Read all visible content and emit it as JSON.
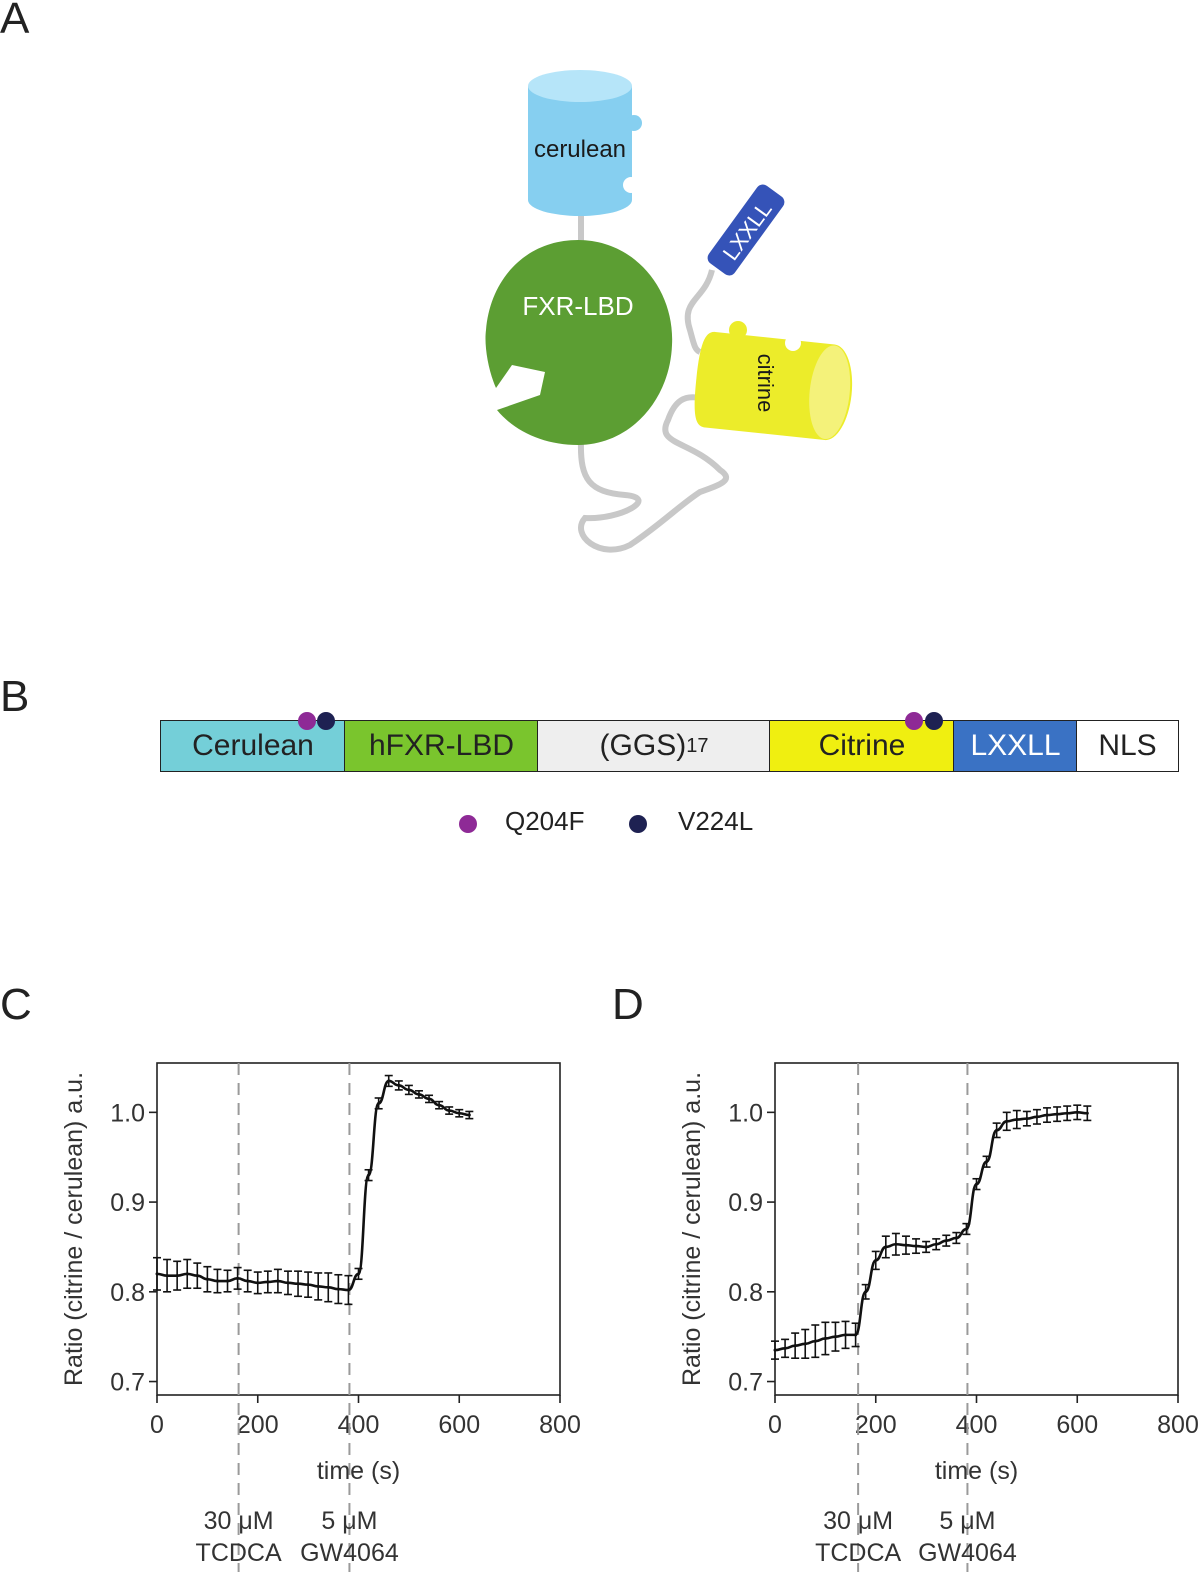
{
  "panels": {
    "a": "A",
    "b": "B",
    "c": "C",
    "d": "D"
  },
  "schematic": {
    "cerulean_label": "cerulean",
    "fxr_label": "FXR-LBD",
    "lxxll_label": "LXXLL",
    "citrine_label": "citrine"
  },
  "construct": {
    "segments": [
      {
        "label": "Cerulean",
        "color": "#74cfd8"
      },
      {
        "label": "hFXR-LBD",
        "color": "#7ac52d"
      },
      {
        "label": "(GGS)",
        "sub": "17",
        "color": "#eeeeee"
      },
      {
        "label": "Citrine",
        "color": "#f0ef10"
      },
      {
        "label": "LXXLL",
        "color": "#3a72c4",
        "text_color": "#ffffff"
      },
      {
        "label": "NLS",
        "color": "#ffffff"
      }
    ],
    "mutation_colors": {
      "q204f": "#8e2a96",
      "v224l": "#1e2152"
    },
    "legend": {
      "q204f": "Q204F",
      "v224l": "V224L"
    }
  },
  "chart_data": [
    {
      "type": "line",
      "panel": "C",
      "xlabel": "time (s)",
      "ylabel": "Ratio (citrine / cerulean) a.u.",
      "xlim": [
        0,
        800
      ],
      "ylim": [
        0.685,
        1.055
      ],
      "xticks": [
        0,
        200,
        400,
        600,
        800
      ],
      "yticks": [
        0.7,
        0.8,
        0.9,
        1.0
      ],
      "ytick_labels": [
        "0.7",
        "0.8",
        "0.9",
        "1.0"
      ],
      "events": [
        {
          "x": 162,
          "line1": "30 μM",
          "line2": "TCDCA"
        },
        {
          "x": 382,
          "line1": "5 μM",
          "line2": "GW4064"
        }
      ],
      "series": [
        {
          "name": "ratio",
          "x": [
            0,
            20,
            40,
            60,
            80,
            100,
            120,
            140,
            160,
            180,
            200,
            220,
            240,
            260,
            280,
            300,
            320,
            340,
            360,
            380,
            400,
            420,
            440,
            460,
            480,
            500,
            520,
            540,
            560,
            580,
            600,
            620
          ],
          "y": [
            0.82,
            0.818,
            0.818,
            0.82,
            0.818,
            0.814,
            0.812,
            0.812,
            0.815,
            0.812,
            0.81,
            0.811,
            0.812,
            0.81,
            0.809,
            0.808,
            0.806,
            0.805,
            0.803,
            0.802,
            0.82,
            0.93,
            1.01,
            1.035,
            1.03,
            1.025,
            1.02,
            1.015,
            1.008,
            1.002,
            0.999,
            0.997
          ],
          "err": [
            0.018,
            0.018,
            0.016,
            0.016,
            0.014,
            0.014,
            0.013,
            0.012,
            0.012,
            0.012,
            0.012,
            0.012,
            0.013,
            0.013,
            0.014,
            0.014,
            0.015,
            0.016,
            0.016,
            0.016,
            0.006,
            0.006,
            0.006,
            0.006,
            0.005,
            0.005,
            0.004,
            0.004,
            0.004,
            0.004,
            0.004,
            0.004
          ]
        }
      ]
    },
    {
      "type": "line",
      "panel": "D",
      "xlabel": "time (s)",
      "ylabel": "Ratio (citrine / cerulean) a.u.",
      "xlim": [
        0,
        800
      ],
      "ylim": [
        0.685,
        1.055
      ],
      "xticks": [
        0,
        200,
        400,
        600,
        800
      ],
      "yticks": [
        0.7,
        0.8,
        0.9,
        1.0
      ],
      "ytick_labels": [
        "0.7",
        "0.8",
        "0.9",
        "1.0"
      ],
      "events": [
        {
          "x": 165,
          "line1": "30 μM",
          "line2": "TCDCA"
        },
        {
          "x": 382,
          "line1": "5 μM",
          "line2": "GW4064"
        }
      ],
      "series": [
        {
          "name": "ratio",
          "x": [
            0,
            20,
            40,
            60,
            80,
            100,
            120,
            140,
            160,
            180,
            200,
            220,
            240,
            260,
            280,
            300,
            320,
            340,
            360,
            380,
            400,
            420,
            440,
            460,
            480,
            500,
            520,
            540,
            560,
            580,
            600,
            620
          ],
          "y": [
            0.735,
            0.737,
            0.74,
            0.742,
            0.745,
            0.748,
            0.75,
            0.752,
            0.752,
            0.8,
            0.835,
            0.85,
            0.853,
            0.852,
            0.851,
            0.85,
            0.853,
            0.857,
            0.86,
            0.87,
            0.92,
            0.945,
            0.98,
            0.99,
            0.992,
            0.993,
            0.995,
            0.997,
            0.998,
            0.999,
            1.0,
            0.999
          ],
          "err": [
            0.01,
            0.01,
            0.014,
            0.016,
            0.018,
            0.018,
            0.016,
            0.015,
            0.013,
            0.008,
            0.01,
            0.012,
            0.012,
            0.01,
            0.008,
            0.006,
            0.006,
            0.006,
            0.006,
            0.006,
            0.006,
            0.006,
            0.008,
            0.01,
            0.01,
            0.008,
            0.008,
            0.008,
            0.008,
            0.008,
            0.008,
            0.008
          ]
        }
      ]
    }
  ]
}
